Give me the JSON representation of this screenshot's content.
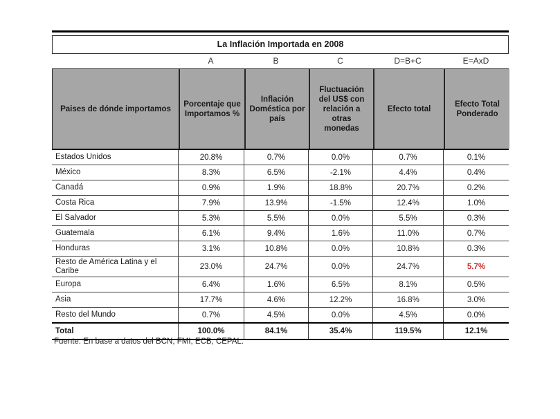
{
  "page": {
    "title": "La Inflación Importada en 2008",
    "source_note": "Fuente: En base a datos del BCN, FMI, ECB, CEPAL."
  },
  "colors": {
    "header_bg": "#a6a6a6",
    "highlight_red": "#cc2b2b",
    "border_dark": "#000000"
  },
  "table": {
    "formula_row": [
      "",
      "A",
      "B",
      "C",
      "D=B+C",
      "E=AxD"
    ],
    "headers": [
      "Paises de dónde importamos",
      "Porcentaje que Importamos %",
      "Inflación Doméstica por país",
      "Fluctuación del US$ con relación a otras monedas",
      "Efecto total",
      "Efecto Total Ponderado"
    ],
    "rows": [
      {
        "country": "Estados Unidos",
        "values": [
          "20.8%",
          "0.7%",
          "0.0%",
          "0.7%",
          "0.1%"
        ]
      },
      {
        "country": "México",
        "values": [
          "8.3%",
          "6.5%",
          "-2.1%",
          "4.4%",
          "0.4%"
        ]
      },
      {
        "country": "Canadá",
        "values": [
          "0.9%",
          "1.9%",
          "18.8%",
          "20.7%",
          "0.2%"
        ]
      },
      {
        "country": "Costa Rica",
        "values": [
          "7.9%",
          "13.9%",
          "-1.5%",
          "12.4%",
          "1.0%"
        ]
      },
      {
        "country": "El Salvador",
        "values": [
          "5.3%",
          "5.5%",
          "0.0%",
          "5.5%",
          "0.3%"
        ]
      },
      {
        "country": "Guatemala",
        "values": [
          "6.1%",
          "9.4%",
          "1.6%",
          "11.0%",
          "0.7%"
        ]
      },
      {
        "country": "Honduras",
        "values": [
          "3.1%",
          "10.8%",
          "0.0%",
          "10.8%",
          "0.3%"
        ]
      },
      {
        "country": "Resto de América Latina y el Caribe",
        "values": [
          "23.0%",
          "24.7%",
          "0.0%",
          "24.7%",
          "5.7%"
        ],
        "tall": true,
        "highlight_col": 4
      },
      {
        "country": "Europa",
        "values": [
          "6.4%",
          "1.6%",
          "6.5%",
          "8.1%",
          "0.5%"
        ]
      },
      {
        "country": "Asia",
        "values": [
          "17.7%",
          "4.6%",
          "12.2%",
          "16.8%",
          "3.0%"
        ]
      },
      {
        "country": "Resto del Mundo",
        "values": [
          "0.7%",
          "4.5%",
          "0.0%",
          "4.5%",
          "0.0%"
        ]
      },
      {
        "country": "Total",
        "values": [
          "100.0%",
          "84.1%",
          "35.4%",
          "119.5%",
          "12.1%"
        ],
        "total": true
      }
    ]
  }
}
